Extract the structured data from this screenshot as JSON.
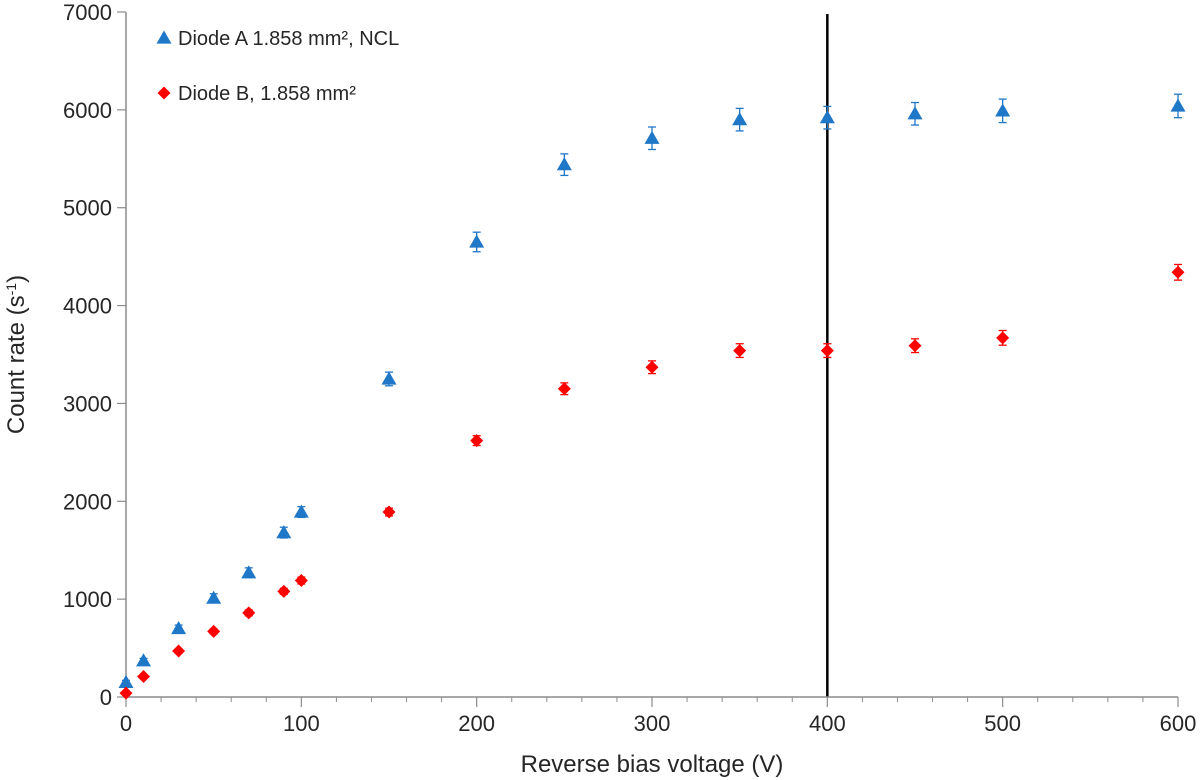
{
  "chart_data": {
    "type": "scatter",
    "title": "",
    "xlabel": "Reverse bias voltage (V)",
    "ylabel_main": "Count rate (s",
    "ylabel_sup": "-1",
    "ylabel_close": ")",
    "xlim": [
      0,
      600
    ],
    "ylim": [
      0,
      7000
    ],
    "xticks": [
      0,
      100,
      200,
      300,
      400,
      500,
      600
    ],
    "yticks": [
      0,
      1000,
      2000,
      3000,
      4000,
      5000,
      6000,
      7000
    ],
    "x_minor_step": 20,
    "grid": false,
    "legend_position": "top-left",
    "vertical_reference_line": 400,
    "series": [
      {
        "name": "Diode A 1.858 mm², NCL",
        "marker": "triangle",
        "color": "#1F77C8",
        "points": [
          {
            "x": 0,
            "y": 150,
            "err": 20
          },
          {
            "x": 10,
            "y": 370,
            "err": 25
          },
          {
            "x": 30,
            "y": 700,
            "err": 35
          },
          {
            "x": 50,
            "y": 1010,
            "err": 45
          },
          {
            "x": 70,
            "y": 1270,
            "err": 50
          },
          {
            "x": 90,
            "y": 1680,
            "err": 55
          },
          {
            "x": 100,
            "y": 1890,
            "err": 55
          },
          {
            "x": 150,
            "y": 3250,
            "err": 70
          },
          {
            "x": 200,
            "y": 4650,
            "err": 100
          },
          {
            "x": 250,
            "y": 5440,
            "err": 110
          },
          {
            "x": 300,
            "y": 5710,
            "err": 115
          },
          {
            "x": 350,
            "y": 5900,
            "err": 115
          },
          {
            "x": 400,
            "y": 5920,
            "err": 115
          },
          {
            "x": 450,
            "y": 5960,
            "err": 115
          },
          {
            "x": 500,
            "y": 5990,
            "err": 120
          },
          {
            "x": 600,
            "y": 6040,
            "err": 120
          }
        ]
      },
      {
        "name": "Diode B, 1.858 mm²",
        "marker": "diamond",
        "color": "#FF0000",
        "points": [
          {
            "x": 0,
            "y": 40,
            "err": 10
          },
          {
            "x": 10,
            "y": 210,
            "err": 15
          },
          {
            "x": 30,
            "y": 470,
            "err": 20
          },
          {
            "x": 50,
            "y": 670,
            "err": 25
          },
          {
            "x": 70,
            "y": 860,
            "err": 30
          },
          {
            "x": 90,
            "y": 1080,
            "err": 30
          },
          {
            "x": 100,
            "y": 1190,
            "err": 35
          },
          {
            "x": 150,
            "y": 1890,
            "err": 40
          },
          {
            "x": 200,
            "y": 2620,
            "err": 50
          },
          {
            "x": 250,
            "y": 3150,
            "err": 60
          },
          {
            "x": 300,
            "y": 3370,
            "err": 65
          },
          {
            "x": 350,
            "y": 3540,
            "err": 70
          },
          {
            "x": 400,
            "y": 3540,
            "err": 70
          },
          {
            "x": 450,
            "y": 3590,
            "err": 70
          },
          {
            "x": 500,
            "y": 3670,
            "err": 75
          },
          {
            "x": 600,
            "y": 4340,
            "err": 80
          }
        ]
      }
    ]
  }
}
